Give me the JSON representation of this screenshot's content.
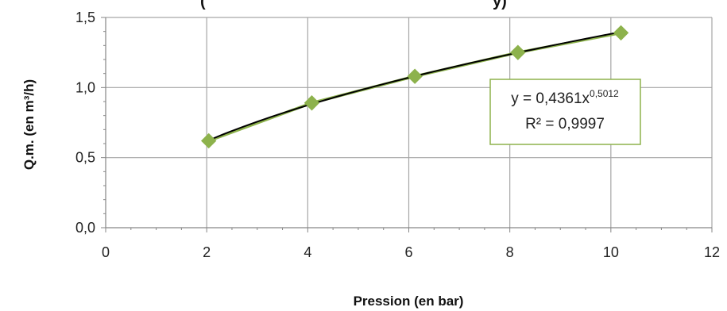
{
  "chart_data": {
    "type": "scatter",
    "title": "(",
    "title_tail": "y)",
    "xlabel": "Pression (en bar)",
    "ylabel": "Q.m. (en m³/h)",
    "xlim": [
      0,
      12
    ],
    "ylim": [
      0,
      1.5
    ],
    "x_ticks": [
      "0",
      "2",
      "4",
      "6",
      "8",
      "10",
      "12"
    ],
    "y_ticks": [
      "0,0",
      "0,5",
      "1,0",
      "1,5"
    ],
    "grid": true,
    "series": [
      {
        "x": [
          2.04,
          4.08,
          6.12,
          8.16,
          10.2
        ],
        "y": [
          0.62,
          0.89,
          1.08,
          1.25,
          1.39
        ]
      }
    ],
    "trendline": {
      "type": "power",
      "coefficient": 0.4361,
      "exponent": 0.5012
    },
    "annotation": {
      "equation_prefix": "y = 0,4361x",
      "equation_exponent": "0,5012",
      "r_squared": "R² = 0,9997"
    },
    "colors": {
      "marker": "#8db24c",
      "marker_line": "#8db24c",
      "trendline": "#000000",
      "grid": "#a6a6a6",
      "annotation_border": "#8db24c"
    }
  }
}
